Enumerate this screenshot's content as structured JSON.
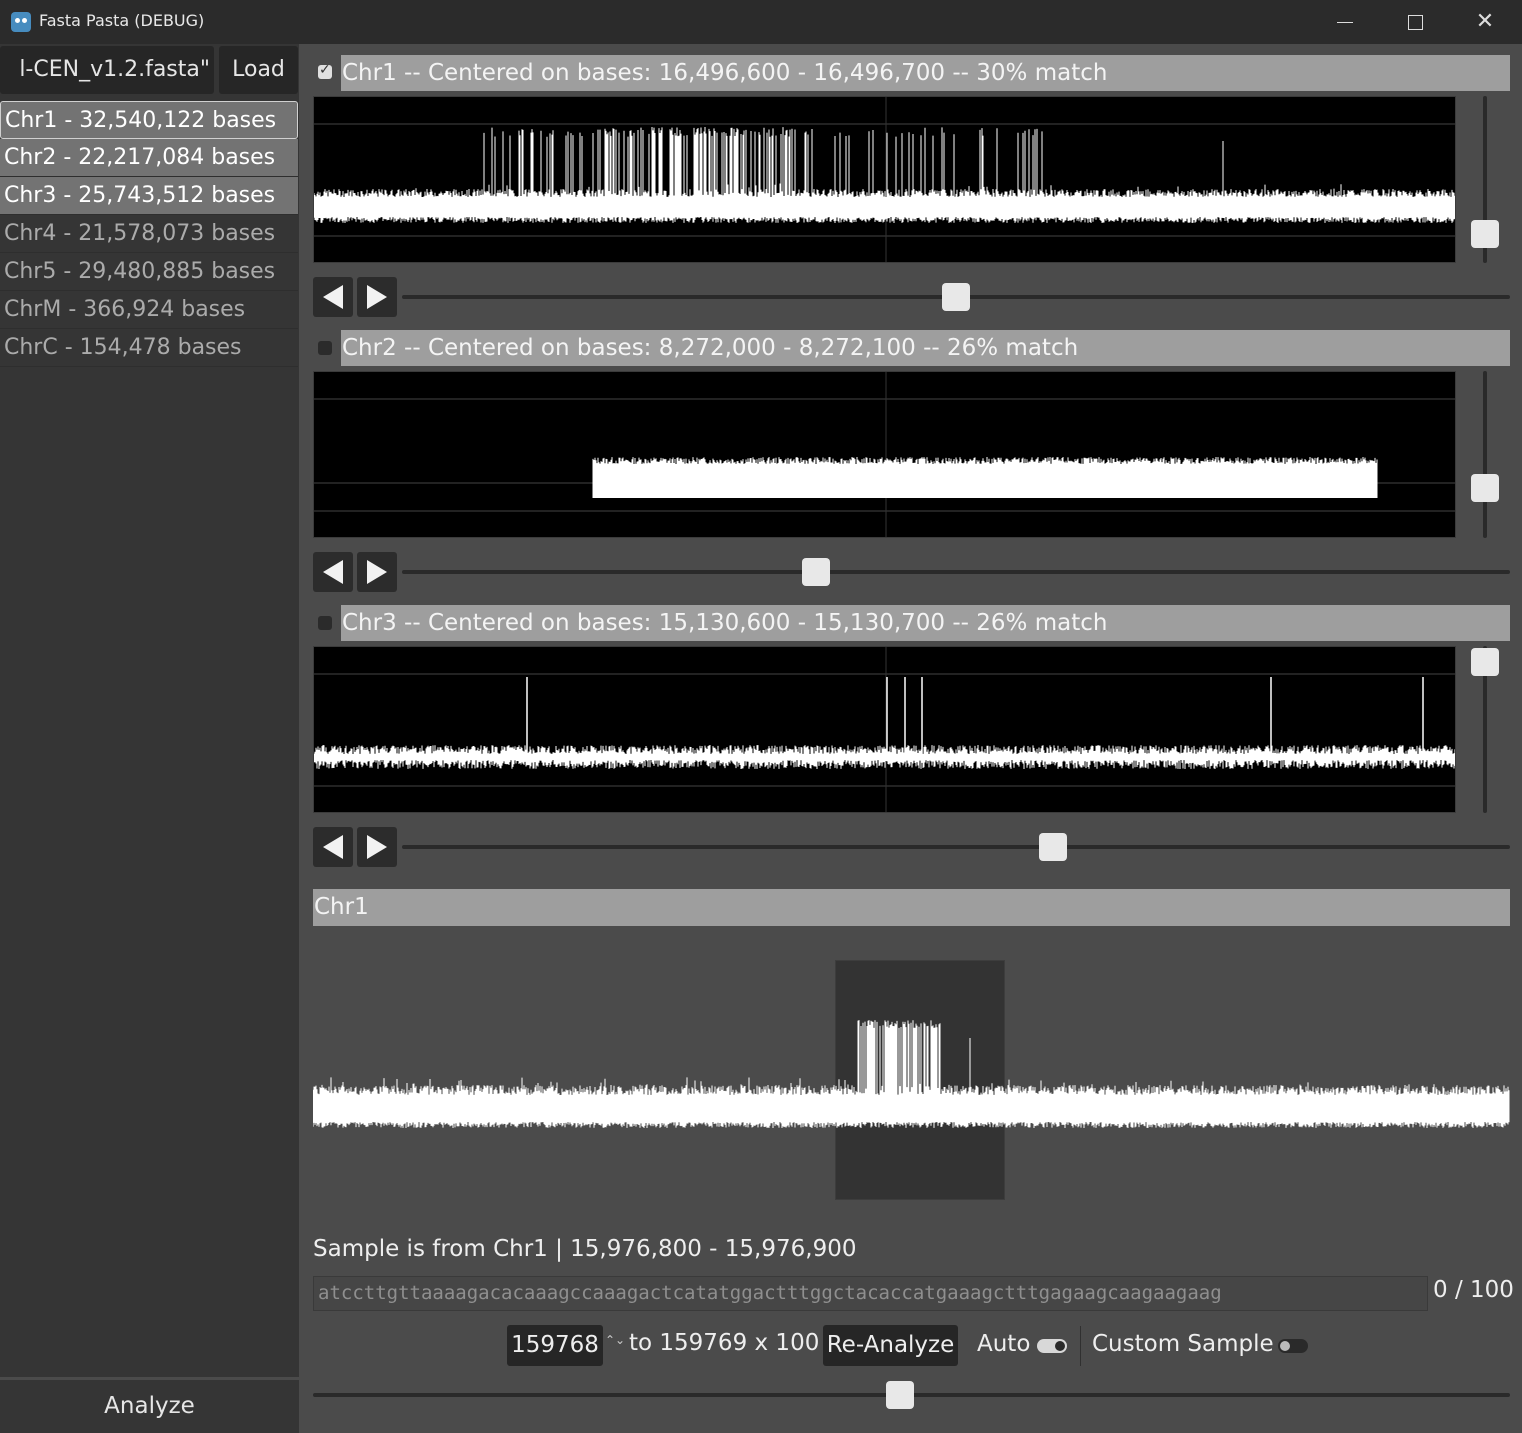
{
  "window": {
    "title": "Fasta Pasta (DEBUG)",
    "controls": [
      "minimize",
      "maximize",
      "close"
    ]
  },
  "sidebar": {
    "file_name": "l-CEN_v1.2.fasta\"",
    "load_label": "Load",
    "chromosomes": [
      {
        "label": "Chr1 - 32,540,122 bases",
        "selected": true
      },
      {
        "label": "Chr2 - 22,217,084 bases",
        "selected": true
      },
      {
        "label": "Chr3 - 25,743,512 bases",
        "selected": true
      },
      {
        "label": "Chr4 - 21,578,073 bases",
        "selected": false
      },
      {
        "label": "Chr5 - 29,480,885 bases",
        "selected": false
      },
      {
        "label": "ChrM - 366,924 bases",
        "selected": false
      },
      {
        "label": "ChrC - 154,478 bases",
        "selected": false
      }
    ],
    "analyze_label": "Analyze"
  },
  "tracks": [
    {
      "checked": true,
      "header": "Chr1 -- Centered on bases: 16,496,600 - 16,496,700 -- 30% match",
      "slider_position": 0.5,
      "vscroll_position": 0.9
    },
    {
      "checked": false,
      "header": "Chr2 -- Centered on bases: 8,272,000 - 8,272,100 -- 26% match",
      "slider_position": 0.37,
      "vscroll_position": 0.75
    },
    {
      "checked": false,
      "header": "Chr3 -- Centered on bases: 15,130,600 - 15,130,700 -- 26% match",
      "slider_position": 0.59,
      "vscroll_position": 0.0
    }
  ],
  "detail": {
    "header": "Chr1",
    "sample_info": "Sample is from Chr1 | 15,976,800 - 15,976,900",
    "sequence": "atccttgttaaaagacacaaagccaaagactcatatggactttggctacaccatgaaagctttgagaagcaagaagaag",
    "counter": "0 / 100",
    "spin_value": "159768",
    "spin_arrows": "⌃⌄",
    "range_text": "to 159769 x 100",
    "reanalyze_label": "Re-Analyze",
    "auto_label": "Auto",
    "auto_on": true,
    "custom_label": "Custom Sample",
    "custom_on": false,
    "slider_position": 0.49
  },
  "icons": {
    "prev": "left-triangle",
    "next": "right-triangle"
  }
}
